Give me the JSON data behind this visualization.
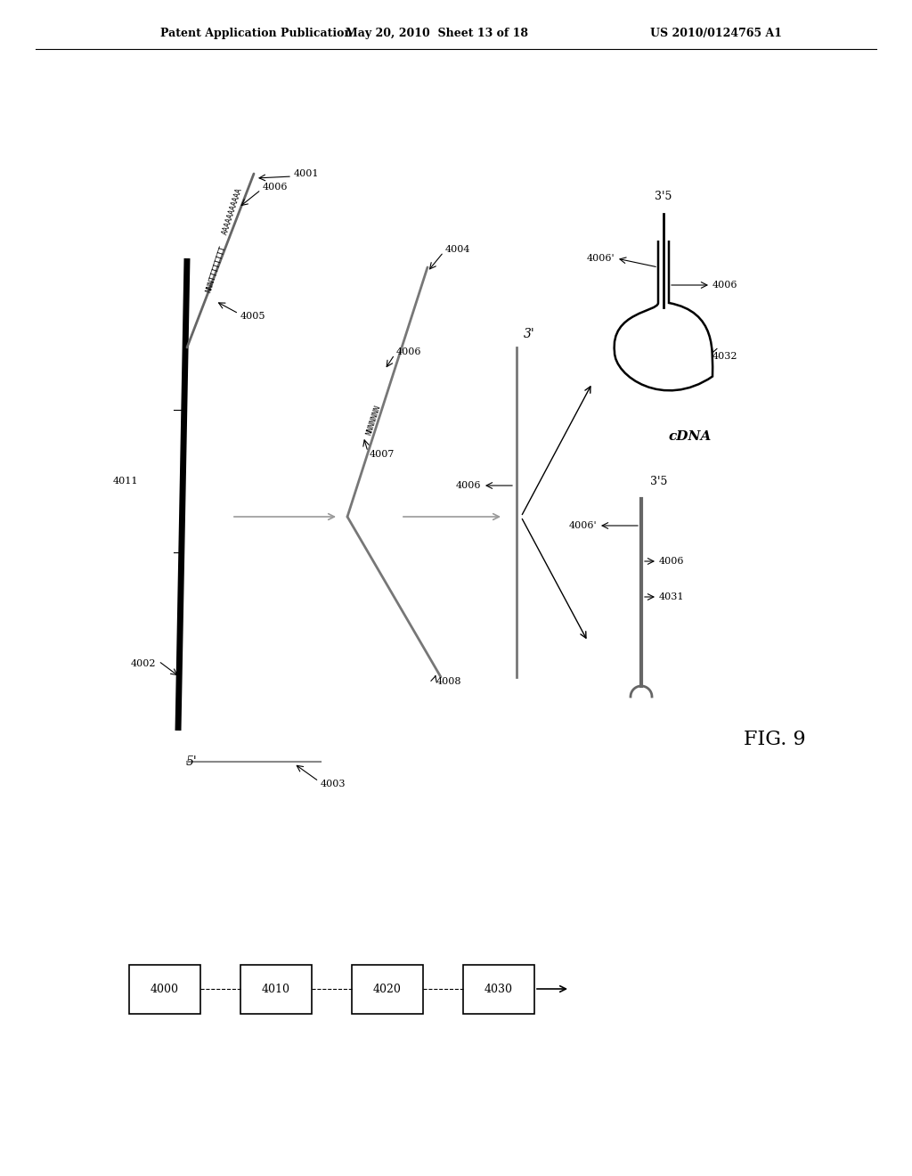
{
  "header_left": "Patent Application Publication",
  "header_mid": "May 20, 2010  Sheet 13 of 18",
  "header_right": "US 2010/0124765 A1",
  "fig_label": "FIG. 9",
  "bg_color": "#ffffff"
}
